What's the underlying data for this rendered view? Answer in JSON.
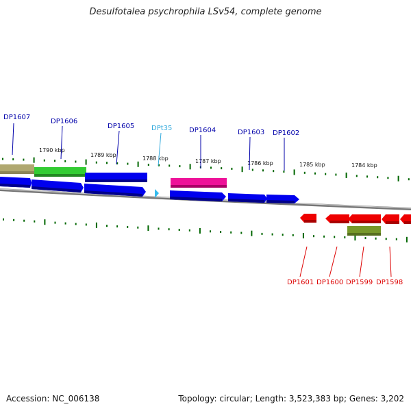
{
  "title": "Desulfotalea psychrophila LSv54, complete genome",
  "footer": {
    "accession": "Accession: NC_006138",
    "summary": "Topology: circular; Length: 3,523,383 bp; Genes: 3,202"
  },
  "colors": {
    "forward_label": "#0000aa",
    "trna_label": "#33aadd",
    "reverse_label": "#dd0000",
    "tick": "#006600",
    "backbone": "#888888",
    "gene_blue": "#0000ee",
    "gene_red": "#ee0000",
    "trna_cyan": "#33bbee",
    "pink": "#ee1199",
    "green": "#33cc33",
    "olive": "#b0a870",
    "olive_dark": "#77992a"
  },
  "kbp_labels": [
    "1790 kbp",
    "1789 kbp",
    "1788 kbp",
    "1787 kbp",
    "1786 kbp",
    "1785 kbp",
    "1784 kbp"
  ],
  "forward_genes": [
    "DP1607",
    "DP1606",
    "DP1605",
    "DPt35",
    "DP1604",
    "DP1603",
    "DP1602"
  ],
  "reverse_genes": [
    "DP1601",
    "DP1600",
    "DP1599",
    "DP1598"
  ]
}
